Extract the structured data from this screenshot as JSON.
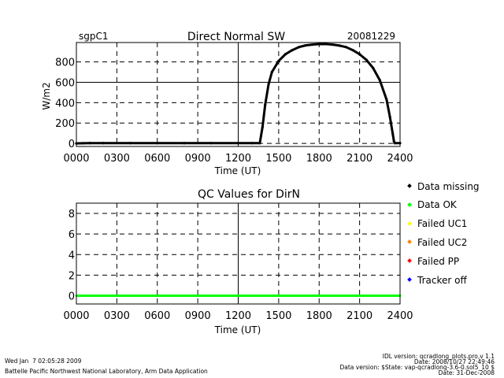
{
  "header": {
    "site": "sgpC1",
    "date": "20081229"
  },
  "chart_data": [
    {
      "type": "scatter",
      "title": "Direct Normal SW",
      "xlabel": "Time (UT)",
      "ylabel": "W/m2",
      "xlim": [
        0,
        24
      ],
      "ylim": [
        -30,
        990
      ],
      "x_ticks": [
        0,
        3,
        6,
        9,
        12,
        15,
        18,
        21,
        24
      ],
      "x_tick_labels": [
        "0000",
        "0300",
        "0600",
        "0900",
        "1200",
        "1500",
        "1800",
        "2100",
        "2400"
      ],
      "y_ticks": [
        0,
        200,
        400,
        600,
        800
      ],
      "y_tick_labels": [
        "0",
        "200",
        "400",
        "600",
        "800"
      ],
      "grid": true,
      "series": [
        {
          "color": "#000000",
          "points": [
            [
              0.0,
              0
            ],
            [
              0.5,
              2
            ],
            [
              1.0,
              3
            ],
            [
              2.0,
              3
            ],
            [
              4.0,
              3
            ],
            [
              6.0,
              3
            ],
            [
              8.0,
              3
            ],
            [
              10.0,
              3
            ],
            [
              12.0,
              3
            ],
            [
              13.0,
              3
            ],
            [
              13.6,
              3
            ],
            [
              13.8,
              160
            ],
            [
              14.0,
              380
            ],
            [
              14.25,
              580
            ],
            [
              14.5,
              700
            ],
            [
              15.0,
              810
            ],
            [
              15.5,
              875
            ],
            [
              16.0,
              915
            ],
            [
              16.5,
              945
            ],
            [
              17.0,
              962
            ],
            [
              17.5,
              970
            ],
            [
              18.0,
              975
            ],
            [
              18.5,
              975
            ],
            [
              19.0,
              970
            ],
            [
              19.5,
              960
            ],
            [
              20.0,
              945
            ],
            [
              20.5,
              915
            ],
            [
              21.0,
              875
            ],
            [
              21.5,
              820
            ],
            [
              22.0,
              740
            ],
            [
              22.5,
              620
            ],
            [
              23.0,
              430
            ],
            [
              23.25,
              260
            ],
            [
              23.45,
              100
            ],
            [
              23.55,
              20
            ],
            [
              23.6,
              3
            ],
            [
              24.0,
              3
            ]
          ]
        }
      ]
    },
    {
      "type": "scatter",
      "title": "QC Values for DirN",
      "xlabel": "Time (UT)",
      "xlim": [
        0,
        24
      ],
      "ylim": [
        -0.8,
        9
      ],
      "x_ticks": [
        0,
        3,
        6,
        9,
        12,
        15,
        18,
        21,
        24
      ],
      "x_tick_labels": [
        "0000",
        "0300",
        "0600",
        "0900",
        "1200",
        "1500",
        "1800",
        "2100",
        "2400"
      ],
      "y_ticks": [
        0,
        2,
        4,
        6,
        8
      ],
      "y_tick_labels": [
        "0",
        "2",
        "4",
        "6",
        "8"
      ],
      "grid": true,
      "series": [
        {
          "color": "#00ff00",
          "points": [
            [
              0.0,
              0
            ],
            [
              24.0,
              0
            ]
          ]
        }
      ]
    }
  ],
  "legend": {
    "items": [
      {
        "label": "Data missing",
        "color": "#000000"
      },
      {
        "label": "Data OK",
        "color": "#00ff00"
      },
      {
        "label": "Failed UC1",
        "color": "#ffff00"
      },
      {
        "label": "Failed UC2",
        "color": "#ff8000"
      },
      {
        "label": "Failed PP",
        "color": "#ff0000"
      },
      {
        "label": "Tracker off",
        "color": "#0000ff"
      }
    ]
  },
  "footer": {
    "timestamp": "Wed Jan  7 02:05:28 2009",
    "institution": "Battelle Pacific Northwest National Laboratory, Arm Data Application",
    "idl_version": "IDL version: qcradlong_plots.pro,v 1.1",
    "date_line": "Date: 2008/10/27 22:49:46",
    "data_version": "Data version: $State: vap-qcradlong-3.6-0.sol5_10 $",
    "date_line2": "Date: 31-Dec-2008"
  }
}
